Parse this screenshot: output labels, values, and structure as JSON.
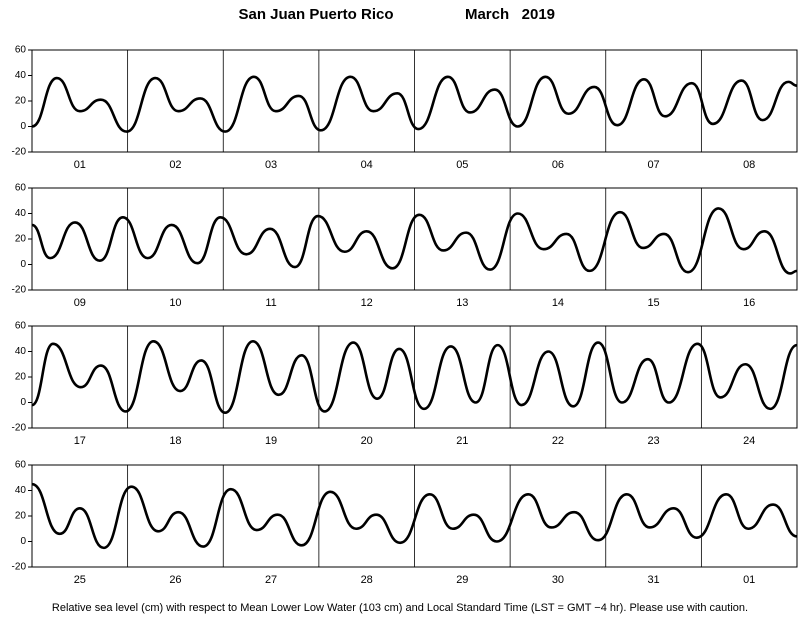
{
  "title": "San Juan Puerto Rico",
  "subtitle": "March   2019",
  "note": "Relative sea level (cm) with respect to Mean Lower Low Water (103 cm) and Local Standard Time (LST = GMT −4 hr). Please use with caution.",
  "chart_data": [
    {
      "type": "line",
      "color": "#000000",
      "categories": [
        "01",
        "02",
        "03",
        "04",
        "05",
        "06",
        "07",
        "08"
      ],
      "xlim": [
        0,
        8
      ],
      "ylim": [
        -20,
        60
      ],
      "yticks": [
        -20,
        0,
        20,
        40,
        60
      ],
      "x": [
        0,
        0.26,
        0.5,
        0.72,
        0.99,
        1.29,
        1.53,
        1.76,
        2.02,
        2.32,
        2.55,
        2.79,
        3.02,
        3.33,
        3.57,
        3.82,
        4.04,
        4.35,
        4.58,
        4.84,
        5.08,
        5.37,
        5.61,
        5.88,
        6.12,
        6.4,
        6.62,
        6.9,
        7.12,
        7.42,
        7.64,
        7.91,
        8.0
      ],
      "values": [
        0,
        38,
        12,
        21,
        -4,
        38,
        12,
        22,
        -4,
        39,
        12,
        24,
        -3,
        39,
        12,
        26,
        -2,
        39,
        11,
        29,
        0,
        39,
        10,
        31,
        1,
        37,
        8,
        34,
        2,
        36,
        5,
        35,
        32
      ]
    },
    {
      "type": "line",
      "color": "#000000",
      "categories": [
        "09",
        "10",
        "11",
        "12",
        "13",
        "14",
        "15",
        "16"
      ],
      "xlim": [
        0,
        8
      ],
      "ylim": [
        -20,
        60
      ],
      "yticks": [
        -20,
        0,
        20,
        40,
        60
      ],
      "x": [
        0,
        0.19,
        0.45,
        0.71,
        0.95,
        1.21,
        1.46,
        1.73,
        1.97,
        2.24,
        2.49,
        2.75,
        2.99,
        3.27,
        3.5,
        3.77,
        4.05,
        4.3,
        4.54,
        4.79,
        5.08,
        5.35,
        5.59,
        5.83,
        6.15,
        6.39,
        6.61,
        6.86,
        7.18,
        7.44,
        7.66,
        7.93,
        8.0
      ],
      "values": [
        31,
        5,
        33,
        3,
        37,
        5,
        31,
        1,
        37,
        8,
        28,
        -2,
        38,
        10,
        26,
        -3,
        39,
        11,
        25,
        -4,
        40,
        12,
        24,
        -5,
        41,
        13,
        24,
        -6,
        44,
        12,
        26,
        -7,
        -5
      ]
    },
    {
      "type": "line",
      "color": "#000000",
      "categories": [
        "17",
        "18",
        "19",
        "20",
        "21",
        "22",
        "23",
        "24"
      ],
      "xlim": [
        0,
        8
      ],
      "ylim": [
        -20,
        60
      ],
      "yticks": [
        -20,
        0,
        20,
        40,
        60
      ],
      "x": [
        0,
        0.22,
        0.51,
        0.72,
        0.98,
        1.27,
        1.55,
        1.77,
        2.02,
        2.31,
        2.58,
        2.82,
        3.06,
        3.36,
        3.61,
        3.84,
        4.1,
        4.38,
        4.64,
        4.87,
        5.12,
        5.4,
        5.66,
        5.92,
        6.17,
        6.44,
        6.66,
        6.96,
        7.2,
        7.46,
        7.72,
        8.0
      ],
      "values": [
        -2,
        46,
        12,
        29,
        -7,
        48,
        9,
        33,
        -8,
        48,
        6,
        37,
        -7,
        47,
        3,
        42,
        -5,
        44,
        0,
        45,
        -2,
        40,
        -3,
        47,
        0,
        34,
        0,
        46,
        4,
        30,
        -5,
        45
      ]
    },
    {
      "type": "line",
      "color": "#000000",
      "categories": [
        "25",
        "26",
        "27",
        "28",
        "29",
        "30",
        "31",
        "01"
      ],
      "xlim": [
        0,
        8
      ],
      "ylim": [
        -20,
        60
      ],
      "yticks": [
        -20,
        0,
        20,
        40,
        60
      ],
      "x": [
        0,
        0.29,
        0.5,
        0.75,
        1.04,
        1.32,
        1.53,
        1.79,
        2.08,
        2.35,
        2.57,
        2.82,
        3.12,
        3.39,
        3.6,
        3.85,
        4.16,
        4.4,
        4.62,
        4.86,
        5.19,
        5.43,
        5.67,
        5.92,
        6.22,
        6.46,
        6.71,
        6.95,
        7.26,
        7.49,
        7.75,
        8.0
      ],
      "values": [
        45,
        6,
        26,
        -5,
        43,
        8,
        23,
        -4,
        41,
        9,
        21,
        -3,
        39,
        10,
        21,
        -1,
        37,
        10,
        21,
        0,
        37,
        11,
        23,
        1,
        37,
        11,
        26,
        3,
        37,
        10,
        29,
        4
      ]
    }
  ]
}
